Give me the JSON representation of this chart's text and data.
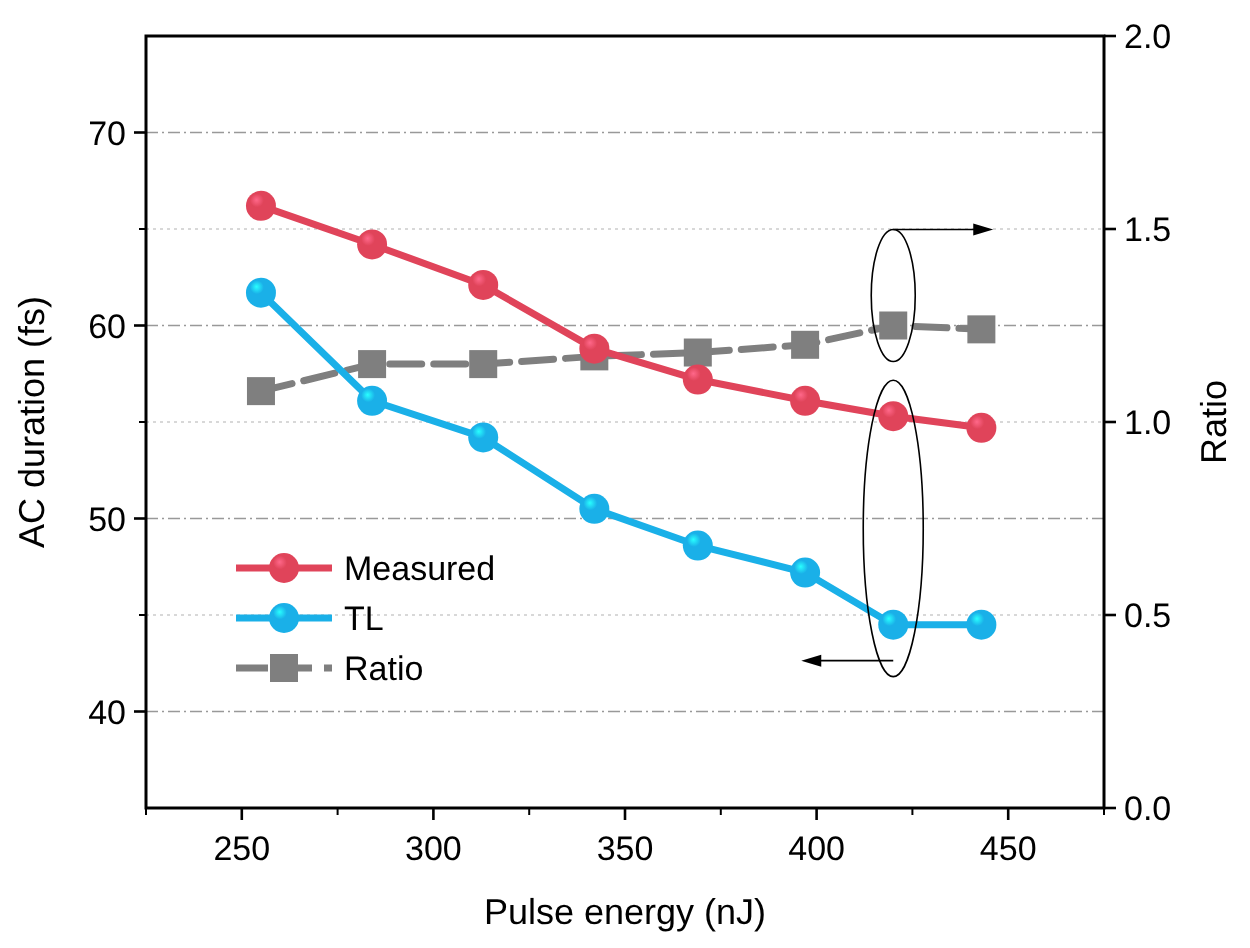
{
  "chart_data": {
    "type": "line",
    "xlabel": "Pulse energy (nJ)",
    "ylabel": "AC duration (fs)",
    "y2label": "Ratio",
    "x": [
      255,
      284,
      313,
      342,
      369,
      397,
      420,
      443
    ],
    "xlim": [
      225,
      475
    ],
    "xticks": [
      250,
      300,
      350,
      400,
      450
    ],
    "ylim": [
      35,
      75
    ],
    "yticks": [
      40,
      50,
      60,
      70
    ],
    "y2lim": [
      0,
      2
    ],
    "y2ticks": [
      {
        "value": 0,
        "label": "0.0"
      },
      {
        "value": 0.5,
        "label": "0.5"
      },
      {
        "value": 1,
        "label": "1.0"
      },
      {
        "value": 1.5,
        "label": "1.5"
      },
      {
        "value": 2,
        "label": "2.0"
      }
    ],
    "grid": true,
    "legend": "bottom left",
    "series": [
      {
        "name": "Measured",
        "color": "#e0445a",
        "marker": "circle",
        "line_style": "solid",
        "values": [
          66.2,
          64.2,
          62.1,
          58.8,
          57.2,
          56.1,
          55.3,
          54.7
        ]
      },
      {
        "name": "TL",
        "color": "#1ab0e8",
        "marker": "circle",
        "line_style": "solid",
        "values": [
          61.7,
          56.1,
          54.2,
          50.5,
          48.6,
          47.2,
          44.5,
          44.5
        ]
      },
      {
        "name": "Ratio",
        "color": "#7f7f7f",
        "marker": "square",
        "line_style": "dashed",
        "axis": "y2",
        "values": [
          1.08,
          1.15,
          1.15,
          1.17,
          1.18,
          1.2,
          1.25,
          1.24
        ]
      }
    ]
  }
}
